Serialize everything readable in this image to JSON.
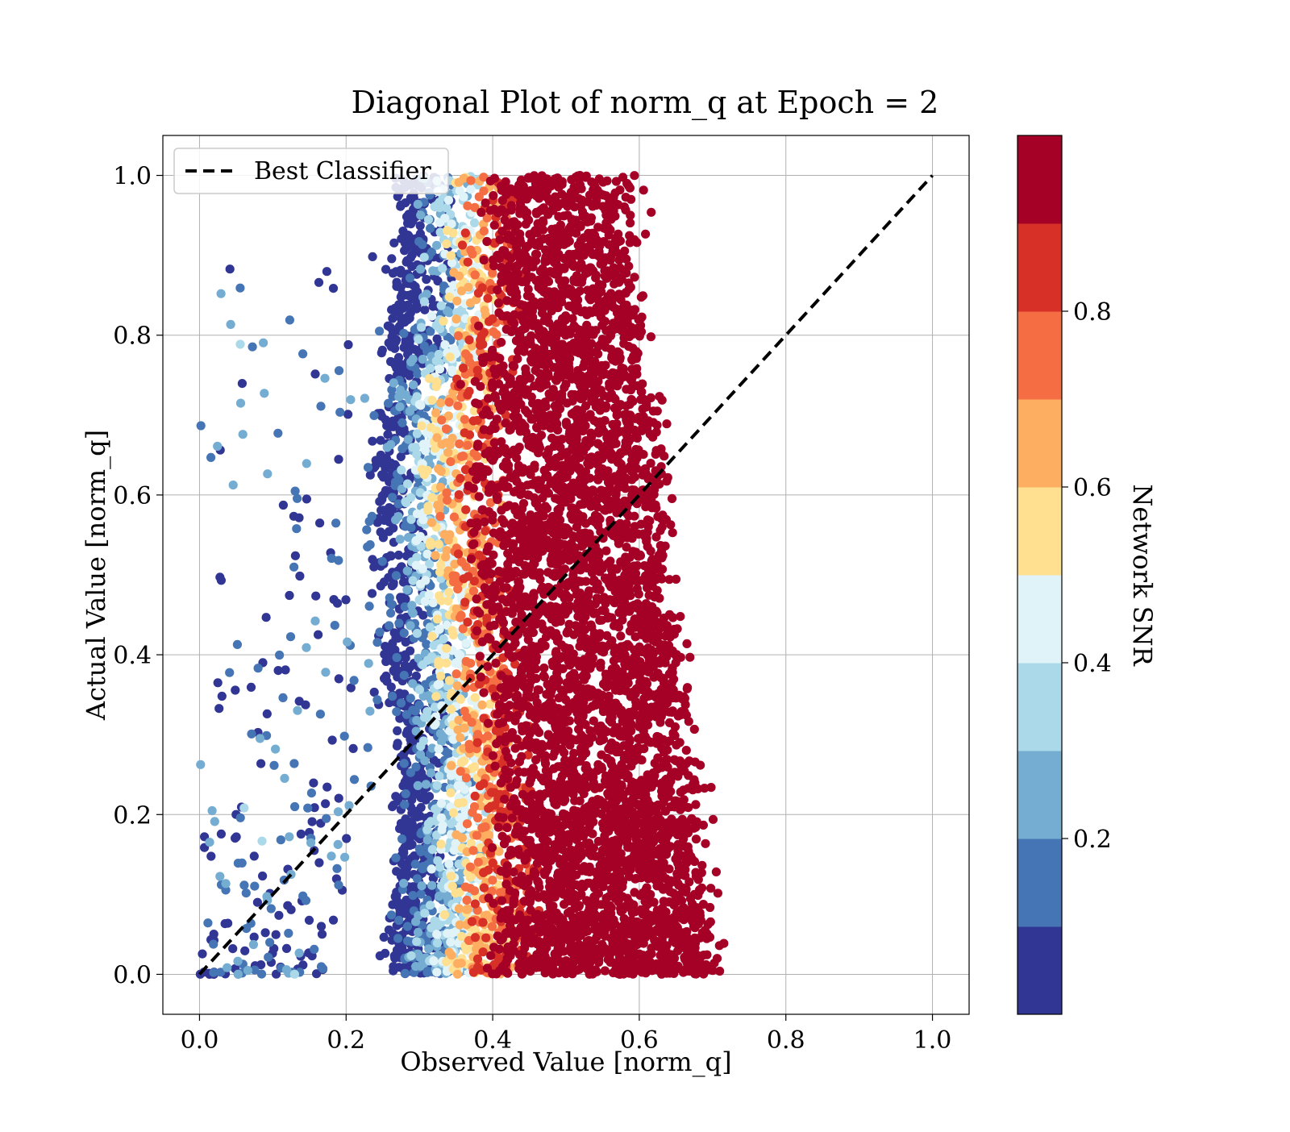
{
  "chart_data": {
    "type": "scatter",
    "title": "Diagonal Plot of norm_q at Epoch = 2",
    "xlabel": "Observed Value [norm_q]",
    "ylabel": "Actual Value [norm_q]",
    "xlim": [
      -0.05,
      1.05
    ],
    "ylim": [
      -0.05,
      1.05
    ],
    "xticks": [
      "0.0",
      "0.2",
      "0.4",
      "0.6",
      "0.8",
      "1.0"
    ],
    "yticks": [
      "0.0",
      "0.2",
      "0.4",
      "0.6",
      "0.8",
      "1.0"
    ],
    "grid": true,
    "legend": {
      "position": "upper-left",
      "entries": [
        "Best Classifier"
      ]
    },
    "reference_line": {
      "name": "Best Classifier",
      "style": "dashed",
      "color": "#000000",
      "x": [
        0.0,
        1.0
      ],
      "y": [
        0.0,
        1.0
      ]
    },
    "scatter_summary": {
      "x_range": [
        0.0,
        0.72
      ],
      "y_range": [
        0.0,
        1.0
      ],
      "dense_core_x_range": [
        0.26,
        0.7
      ],
      "high_snr_region_x_range": [
        0.38,
        0.68
      ],
      "low_snr_outliers_x_range": [
        0.0,
        0.26
      ]
    },
    "colorbar": {
      "label": "Network SNR",
      "ticks": [
        "0.2",
        "0.4",
        "0.6",
        "0.8"
      ],
      "range": [
        0.0,
        1.0
      ],
      "colormap": "RdYlBu_r (10 discrete bins)",
      "colors": [
        "#313695",
        "#4575b4",
        "#74add1",
        "#abd9e9",
        "#e0f3f8",
        "#fee090",
        "#fdae61",
        "#f46d43",
        "#d73027",
        "#a50026"
      ]
    }
  }
}
